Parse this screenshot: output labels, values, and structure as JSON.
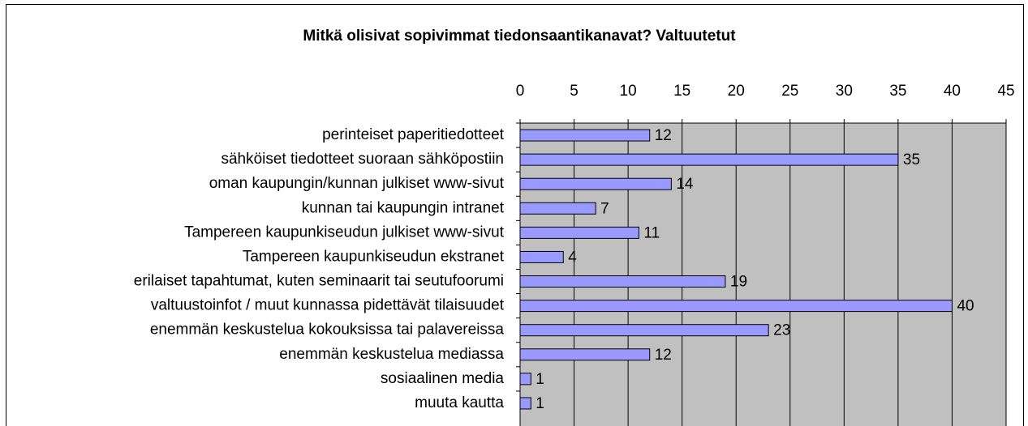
{
  "chart_data": {
    "type": "barh",
    "title": "Mitkä olisivat sopivimmat tiedonsaantikanavat? Valtuutetut",
    "categories": [
      "perinteiset paperitiedotteet",
      "sähköiset tiedotteet suoraan sähköpostiin",
      "oman kaupungin/kunnan julkiset www-sivut",
      "kunnan tai kaupungin intranet",
      "Tampereen kaupunkiseudun julkiset www-sivut",
      "Tampereen kaupunkiseudun ekstranet",
      "erilaiset tapahtumat, kuten seminaarit tai seutufoorumi",
      "valtuustoinfot / muut kunnassa pidettävät tilaisuudet",
      "enemmän keskustelua kokouksissa tai palavereissa",
      "enemmän keskustelua mediassa",
      "sosiaalinen media",
      "muuta kautta"
    ],
    "values": [
      12,
      35,
      14,
      7,
      11,
      4,
      19,
      40,
      23,
      12,
      1,
      1
    ],
    "color": "#9999ff",
    "xlim": [
      0,
      45
    ],
    "xticks": [
      0,
      5,
      10,
      15,
      20,
      25,
      30,
      35,
      40,
      45
    ],
    "grid": true
  }
}
